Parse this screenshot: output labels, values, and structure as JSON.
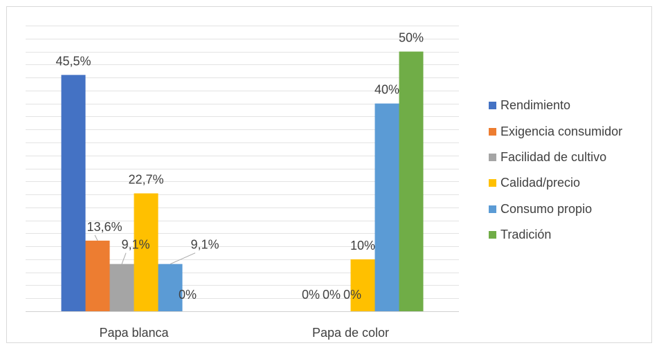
{
  "chart_data": {
    "type": "bar",
    "title": "",
    "xlabel": "",
    "ylabel": "",
    "ylim": [
      0,
      0.55
    ],
    "grid": true,
    "legend_position": "right",
    "categories": [
      "Papa blanca",
      "Papa de color"
    ],
    "series": [
      {
        "name": "Rendimiento",
        "color": "#4472C4",
        "values": [
          0.455,
          0.0
        ],
        "labels": [
          "45,5%",
          "0%"
        ]
      },
      {
        "name": "Exigencia consumidor",
        "color": "#ED7D31",
        "values": [
          0.136,
          0.0
        ],
        "labels": [
          "13,6%",
          "0%"
        ]
      },
      {
        "name": "Facilidad de cultivo",
        "color": "#A5A5A5",
        "values": [
          0.091,
          0.0
        ],
        "labels": [
          "9,1%",
          "0%"
        ]
      },
      {
        "name": "Calidad/precio",
        "color": "#FFC000",
        "values": [
          0.227,
          0.1
        ],
        "labels": [
          "22,7%",
          "10%"
        ]
      },
      {
        "name": "Consumo propio",
        "color": "#5B9BD5",
        "values": [
          0.091,
          0.4
        ],
        "labels": [
          "9,1%",
          "40%"
        ]
      },
      {
        "name": "Tradición",
        "color": "#70AD47",
        "values": [
          0.0,
          0.5
        ],
        "labels": [
          "0%",
          "50%"
        ]
      }
    ]
  }
}
